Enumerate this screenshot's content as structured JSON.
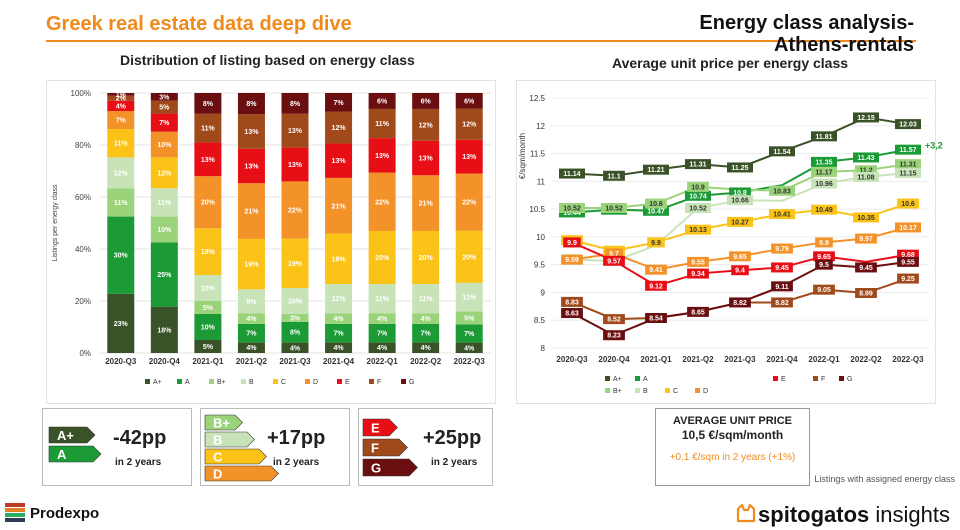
{
  "header": {
    "title": "Greek real estate data deep dive",
    "right_title_line1": "Energy class analysis-",
    "right_title_line2": "Athens-rentals"
  },
  "subtitles": {
    "left": "Distribution of listing based on energy class",
    "right": "Average unit price per energy class"
  },
  "colors": {
    "Aplus": "#3a5228",
    "A": "#1b9a36",
    "Bplus": "#9bd37a",
    "B": "#c9e3b9",
    "C": "#fbc318",
    "D": "#f4922a",
    "E": "#e80e16",
    "F": "#a0491a",
    "G": "#6a0e10",
    "accent": "#f08a1c"
  },
  "chart_data": [
    {
      "type": "bar",
      "stacked": true,
      "title": "Distribution of listing based on energy class",
      "ylabel": "Listings per energy class",
      "yticks": [
        "0%",
        "20%",
        "40%",
        "60%",
        "80%",
        "100%"
      ],
      "ylim": [
        0,
        100
      ],
      "categories": [
        "2020-Q3",
        "2020-Q4",
        "2021-Q1",
        "2021-Q2",
        "2021-Q3",
        "2021-Q4",
        "2022-Q1",
        "2022-Q2",
        "2022-Q3"
      ],
      "series": [
        {
          "name": "A+",
          "values": [
            23,
            18,
            5,
            4,
            4,
            4,
            4,
            4,
            4
          ],
          "labels": [
            "23%",
            "18%",
            "5%",
            "4%",
            "4%",
            "4%",
            "4%",
            "4%",
            "4%"
          ]
        },
        {
          "name": "A",
          "values": [
            30,
            25,
            10,
            7,
            8,
            7,
            7,
            7,
            7
          ],
          "labels": [
            "30%",
            "25%",
            "10%",
            "7%",
            "8%",
            "7%",
            "7%",
            "7%",
            "7%"
          ]
        },
        {
          "name": "B+",
          "values": [
            11,
            10,
            5,
            4,
            3,
            4,
            4,
            4,
            5
          ],
          "labels": [
            "11%",
            "10%",
            "5%",
            "4%",
            "3%",
            "4%",
            "4%",
            "4%",
            "5%"
          ]
        },
        {
          "name": "B",
          "values": [
            12,
            11,
            10,
            9,
            10,
            11,
            11,
            11,
            11
          ],
          "labels": [
            "12%",
            "11%",
            "10%",
            "9%",
            "10%",
            "11%",
            "11%",
            "11%",
            "11%"
          ]
        },
        {
          "name": "C",
          "values": [
            11,
            12,
            18,
            19,
            19,
            19,
            20,
            20,
            20
          ],
          "labels": [
            "11%",
            "12%",
            "18%",
            "19%",
            "19%",
            "19%",
            "20%",
            "20%",
            "20%"
          ]
        },
        {
          "name": "D",
          "values": [
            7,
            10,
            20,
            21,
            22,
            21,
            22,
            21,
            22
          ],
          "labels": [
            "7%",
            "10%",
            "20%",
            "21%",
            "22%",
            "21%",
            "22%",
            "21%",
            "22%"
          ]
        },
        {
          "name": "E",
          "values": [
            4,
            7,
            13,
            13,
            13,
            13,
            13,
            13,
            13
          ],
          "labels": [
            "4%",
            "7%",
            "13%",
            "13%",
            "13%",
            "13%",
            "13%",
            "13%",
            "13%"
          ]
        },
        {
          "name": "F",
          "values": [
            2,
            5,
            11,
            13,
            13,
            12,
            11,
            12,
            12
          ],
          "labels": [
            "2%",
            "5%",
            "11%",
            "13%",
            "13%",
            "12%",
            "11%",
            "12%",
            "12%"
          ]
        },
        {
          "name": "G",
          "values": [
            1,
            3,
            8,
            8,
            8,
            7,
            6,
            6,
            6
          ],
          "labels": [
            "1%",
            "3%",
            "8%",
            "8%",
            "8%",
            "7%",
            "6%",
            "6%",
            "6%"
          ]
        }
      ],
      "legend_position": "bottom"
    },
    {
      "type": "line",
      "title": "Average unit price per energy class",
      "ylabel": "€/sqm/month",
      "ylim": [
        8,
        12.5
      ],
      "yticks": [
        "8",
        "8.5",
        "9",
        "9.5",
        "10",
        "10.5",
        "11",
        "11.5",
        "12",
        "12.5"
      ],
      "categories": [
        "2020-Q3",
        "2020-Q4",
        "2021-Q1",
        "2021-Q2",
        "2021-Q3",
        "2021-Q4",
        "2022-Q1",
        "2022-Q2",
        "2022-Q3"
      ],
      "series": [
        {
          "name": "A+",
          "values": [
            11.14,
            11.1,
            11.21,
            11.31,
            11.25,
            11.54,
            11.81,
            12.15,
            12.03
          ]
        },
        {
          "name": "A",
          "values": [
            10.44,
            10.49,
            10.47,
            10.74,
            10.8,
            10.93,
            11.35,
            11.43,
            11.57
          ]
        },
        {
          "name": "B+",
          "values": [
            10.52,
            10.52,
            10.6,
            10.9,
            10.85,
            10.83,
            11.17,
            11.2,
            11.31
          ]
        },
        {
          "name": "B",
          "values": [
            9.6,
            9.56,
            9.85,
            10.52,
            10.66,
            10.65,
            10.96,
            11.08,
            11.15
          ]
        },
        {
          "name": "C",
          "values": [
            9.94,
            9.75,
            9.9,
            10.13,
            10.27,
            10.41,
            10.49,
            10.35,
            10.6
          ]
        },
        {
          "name": "D",
          "values": [
            9.59,
            9.7,
            9.41,
            9.55,
            9.65,
            9.79,
            9.9,
            9.97,
            10.17
          ]
        },
        {
          "name": "E",
          "values": [
            9.9,
            9.57,
            9.12,
            9.34,
            9.4,
            9.45,
            9.65,
            9.55,
            9.68
          ]
        },
        {
          "name": "F",
          "values": [
            8.83,
            8.52,
            8.54,
            8.65,
            8.82,
            8.82,
            9.05,
            8.99,
            9.25
          ]
        },
        {
          "name": "G",
          "values": [
            8.63,
            8.23,
            8.54,
            8.65,
            8.82,
            9.11,
            9.5,
            9.45,
            9.55
          ]
        }
      ],
      "labels": {
        "A+": [
          "11.14",
          "11.1",
          "11.21",
          "11.31",
          "11.25",
          "11.54",
          "11.81",
          "12.15",
          "12.03"
        ],
        "A": [
          "10.44",
          "10.49",
          "10.47",
          "10.74",
          "10.8",
          "",
          "11.35",
          "11.43",
          "11.57"
        ],
        "B+": [
          "10.52",
          "10.52",
          "10.6",
          "10.9",
          "",
          "10.83",
          "11.17",
          "11.2",
          "11.31"
        ],
        "B": [
          "9.6",
          "",
          "",
          "10.52",
          "10.66",
          "",
          "10.96",
          "11.08",
          "11.15"
        ],
        "C": [
          "9.94",
          "9.75",
          "9.9",
          "10.13",
          "10.27",
          "10.41",
          "10.49",
          "10.35",
          "10.6"
        ],
        "D": [
          "9.59",
          "9.7",
          "9.41",
          "9.55",
          "9.65",
          "9.79",
          "9.9",
          "9.97",
          "10.17"
        ],
        "E": [
          "9.9",
          "9.57",
          "9.12",
          "9.34",
          "9.4",
          "9.45",
          "9.65",
          "",
          "9.68"
        ],
        "F": [
          "8.83",
          "8.52",
          "",
          "",
          "",
          "8.82",
          "9.05",
          "8.99",
          "9.25"
        ],
        "G": [
          "8.63",
          "8.23",
          "8.54",
          "8.65",
          "8.82",
          "9.11",
          "9.5",
          "9.45",
          "9.55"
        ]
      },
      "annotation": "+3,2",
      "legend_rows": [
        [
          "A+",
          "A",
          "E",
          "F",
          "G"
        ],
        [
          "B+",
          "B",
          "C",
          "D"
        ]
      ],
      "legend_position": "bottom"
    }
  ],
  "summary": {
    "box1": {
      "badges": [
        "A+",
        "A"
      ],
      "change": "-42pp",
      "period": "in 2 years"
    },
    "box2": {
      "badges": [
        "B+",
        "B",
        "C",
        "D"
      ],
      "change": "+17pp",
      "period": "in 2 years"
    },
    "box3": {
      "badges": [
        "E",
        "F",
        "G"
      ],
      "change": "+25pp",
      "period": "in 2 years"
    },
    "avg": {
      "title": "AVERAGE UNIT PRICE",
      "value": "10,5 €/sqm/month",
      "change": "+0.1 €/sqm in 2 years (+1%)"
    }
  },
  "note": "Listings with assigned energy class",
  "footer": {
    "left_logo": "Prodexpo",
    "right_logo_bold": "spitogatos",
    "right_logo_light": " insights"
  }
}
